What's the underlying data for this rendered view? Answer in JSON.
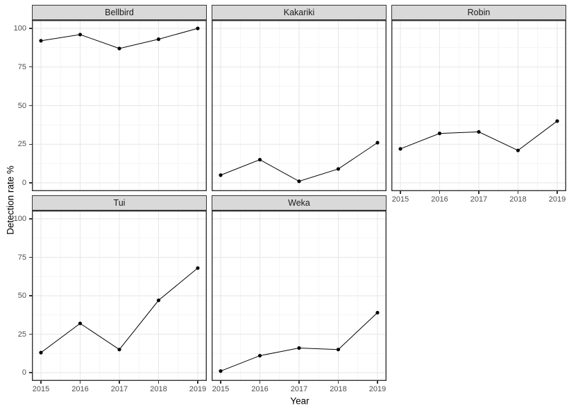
{
  "chart_data": {
    "type": "line",
    "title": "",
    "xlabel": "Year",
    "ylabel": "Detection rate %",
    "x": [
      "2015",
      "2016",
      "2017",
      "2018",
      "2019"
    ],
    "yticks": [
      0,
      25,
      50,
      75,
      100
    ],
    "ylim": [
      0,
      100
    ],
    "grid": "major and minor, light grey on white (ggplot theme_bw)",
    "legend": "none",
    "facets": [
      {
        "name": "Bellbird",
        "values": [
          92,
          96,
          87,
          93,
          100
        ]
      },
      {
        "name": "Kakariki",
        "values": [
          5,
          15,
          1,
          9,
          26
        ]
      },
      {
        "name": "Robin",
        "values": [
          22,
          32,
          33,
          21,
          40
        ]
      },
      {
        "name": "Tui",
        "values": [
          13,
          32,
          15,
          47,
          68
        ]
      },
      {
        "name": "Weka",
        "values": [
          1,
          11,
          16,
          15,
          39
        ]
      }
    ],
    "colors": {
      "line": "#000000",
      "point": "#000000",
      "strip_bg": "#d9d9d9",
      "panel_border": "#333333",
      "grid_major": "#e6e6e6",
      "grid_minor": "#f2f2f2",
      "axis_text": "#4d4d4d",
      "axis_title": "#000000",
      "background": "#ffffff"
    }
  }
}
